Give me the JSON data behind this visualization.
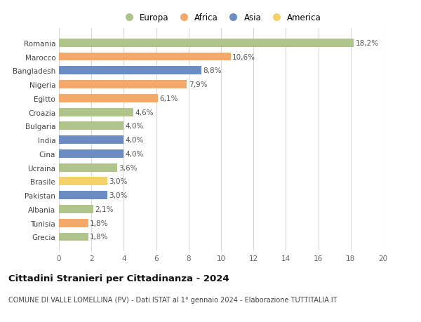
{
  "categories": [
    "Romania",
    "Marocco",
    "Bangladesh",
    "Nigeria",
    "Egitto",
    "Croazia",
    "Bulgaria",
    "India",
    "Cina",
    "Ucraina",
    "Brasile",
    "Pakistan",
    "Albania",
    "Tunisia",
    "Grecia"
  ],
  "values": [
    18.2,
    10.6,
    8.8,
    7.9,
    6.1,
    4.6,
    4.0,
    4.0,
    4.0,
    3.6,
    3.0,
    3.0,
    2.1,
    1.8,
    1.8
  ],
  "labels": [
    "18,2%",
    "10,6%",
    "8,8%",
    "7,9%",
    "6,1%",
    "4,6%",
    "4,0%",
    "4,0%",
    "4,0%",
    "3,6%",
    "3,0%",
    "3,0%",
    "2,1%",
    "1,8%",
    "1,8%"
  ],
  "colors": [
    "#aec48a",
    "#f4a96a",
    "#6b8dc4",
    "#f4a96a",
    "#f4a96a",
    "#aec48a",
    "#aec48a",
    "#6b8dc4",
    "#6b8dc4",
    "#aec48a",
    "#f5d16a",
    "#6b8dc4",
    "#aec48a",
    "#f4a96a",
    "#aec48a"
  ],
  "legend_labels": [
    "Europa",
    "Africa",
    "Asia",
    "America"
  ],
  "legend_colors": [
    "#aec48a",
    "#f4a96a",
    "#6b8dc4",
    "#f5d16a"
  ],
  "title": "Cittadini Stranieri per Cittadinanza - 2024",
  "subtitle": "COMUNE DI VALLE LOMELLINA (PV) - Dati ISTAT al 1° gennaio 2024 - Elaborazione TUTTITALIA.IT",
  "xlim": [
    0,
    20
  ],
  "xticks": [
    0,
    2,
    4,
    6,
    8,
    10,
    12,
    14,
    16,
    18,
    20
  ],
  "background_color": "#ffffff",
  "grid_color": "#d8d8d8",
  "bar_height": 0.6,
  "label_fontsize": 7.5,
  "tick_fontsize": 7.5,
  "title_fontsize": 9.5,
  "subtitle_fontsize": 7.0
}
